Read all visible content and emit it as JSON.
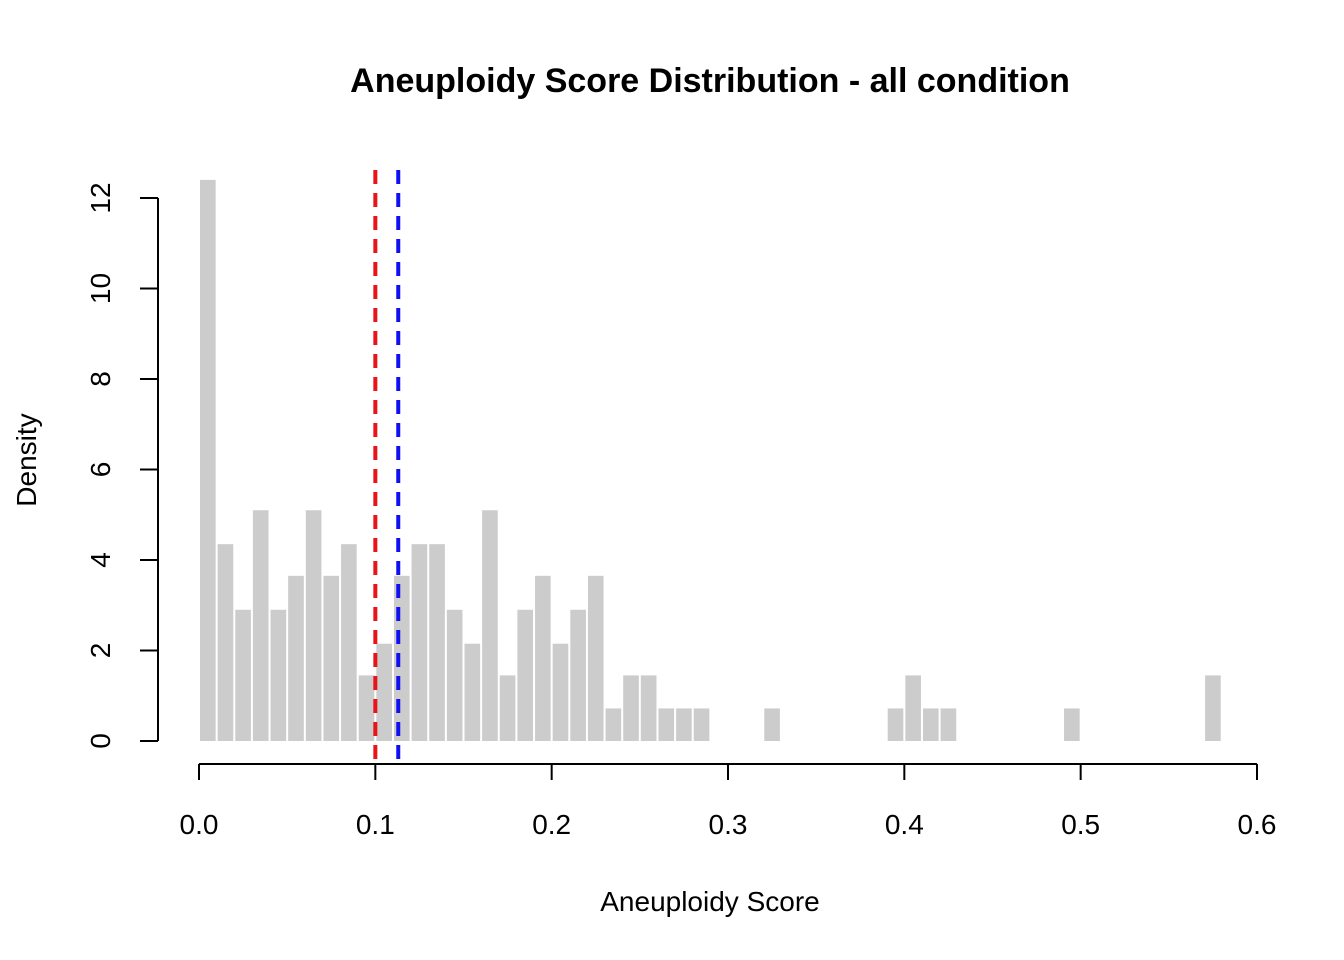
{
  "chart_data": {
    "type": "bar",
    "subtype": "histogram",
    "title": "Aneuploidy Score Distribution - all condition",
    "xlabel": "Aneuploidy Score",
    "ylabel": "Density",
    "xlim": [
      0,
      0.6
    ],
    "ylim": [
      0,
      12.4
    ],
    "xticks": [
      "0.0",
      "0.1",
      "0.2",
      "0.3",
      "0.4",
      "0.5",
      "0.6"
    ],
    "yticks": [
      "0",
      "2",
      "4",
      "6",
      "8",
      "10",
      "12"
    ],
    "bin_width": 0.01,
    "bins_start": [
      0.0,
      0.01,
      0.02,
      0.03,
      0.04,
      0.05,
      0.06,
      0.07,
      0.08,
      0.09,
      0.1,
      0.11,
      0.12,
      0.13,
      0.14,
      0.15,
      0.16,
      0.17,
      0.18,
      0.19,
      0.2,
      0.21,
      0.22,
      0.23,
      0.24,
      0.25,
      0.26,
      0.27,
      0.28,
      0.32,
      0.39,
      0.4,
      0.41,
      0.42,
      0.49,
      0.57
    ],
    "density": [
      12.4,
      4.35,
      2.9,
      5.1,
      2.9,
      3.65,
      5.1,
      3.65,
      4.35,
      1.45,
      2.15,
      3.65,
      4.35,
      4.35,
      2.9,
      2.15,
      5.1,
      1.45,
      2.9,
      3.65,
      2.15,
      2.9,
      3.65,
      0.72,
      1.45,
      1.45,
      0.72,
      0.72,
      0.72,
      0.72,
      0.72,
      1.45,
      0.72,
      0.72,
      0.72,
      1.45
    ],
    "bar_color": "#cccccc",
    "vlines": [
      {
        "x": 0.1,
        "color": "#e8141a",
        "style": "dashed"
      },
      {
        "x": 0.113,
        "color": "#1010f0",
        "style": "dashed"
      }
    ],
    "grid": false,
    "legend": "none"
  }
}
